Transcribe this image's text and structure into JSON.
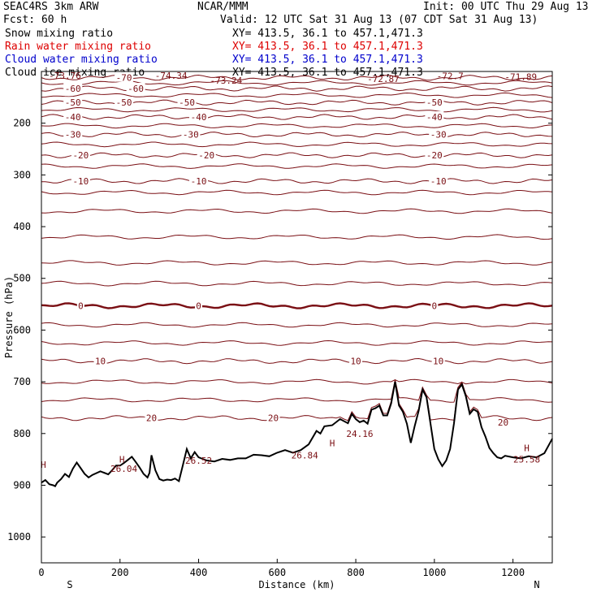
{
  "header": {
    "model": "SEAC4RS  3km ARW",
    "org": "NCAR/MMM",
    "init": "Init: 00 UTC Thu 29 Aug 13",
    "fcst": "Fcst:   60 h",
    "valid": "Valid: 12 UTC Sat 31 Aug 13 (07 CDT Sat 31 Aug 13)"
  },
  "fields": [
    {
      "name": "Snow mixing ratio",
      "xy": "XY= 413.5, 36.1 to 457.1,471.3",
      "color": "#000000"
    },
    {
      "name": "Rain water mixing ratio",
      "xy": "XY= 413.5, 36.1 to 457.1,471.3",
      "color": "#dd0000"
    },
    {
      "name": "Cloud water mixing ratio",
      "xy": "XY= 413.5, 36.1 to 457.1,471.3",
      "color": "#0000cc"
    },
    {
      "name": "Cloud ice mixing ratio",
      "xy": "XY= 413.5, 36.1 to 457.1,471.3",
      "color": "#000000"
    }
  ],
  "chart_data": {
    "type": "line",
    "xlabel": "Distance (km)",
    "ylabel": "Pressure (hPa)",
    "xlim": [
      0,
      1300
    ],
    "ylim": [
      1050,
      100
    ],
    "x_ticks": [
      0,
      200,
      400,
      600,
      800,
      1000,
      1200
    ],
    "y_ticks": [
      200,
      300,
      400,
      500,
      600,
      700,
      800,
      900,
      1000
    ],
    "x_end_labels": {
      "left": "S",
      "right": "N"
    },
    "contour_color": "#7a0f14",
    "isotherms": [
      {
        "label": "-70",
        "p": 112
      },
      {
        "label": "-60",
        "p": 133
      },
      {
        "label": "-50",
        "p": 160
      },
      {
        "label": "-40",
        "p": 188
      },
      {
        "label": "-30",
        "p": 222
      },
      {
        "label": "-20",
        "p": 262
      },
      {
        "label": "-10",
        "p": 312
      },
      {
        "label": "0",
        "p": 553
      },
      {
        "label": "10",
        "p": 660
      },
      {
        "label": "20",
        "p": 770
      }
    ],
    "isotherm_label_positions": [
      {
        "label": "-70",
        "x": 210
      },
      {
        "label": "-60",
        "x": 240
      },
      {
        "label": "-60",
        "x": 80
      },
      {
        "label": "-50",
        "x": 80
      },
      {
        "label": "-50",
        "x": 210
      },
      {
        "label": "-50",
        "x": 370
      },
      {
        "label": "-50",
        "x": 1000
      },
      {
        "label": "-40",
        "x": 80
      },
      {
        "label": "-40",
        "x": 400
      },
      {
        "label": "-40",
        "x": 1000
      },
      {
        "label": "-30",
        "x": 80
      },
      {
        "label": "-30",
        "x": 380
      },
      {
        "label": "-30",
        "x": 1010
      },
      {
        "label": "-20",
        "x": 100
      },
      {
        "label": "-20",
        "x": 420
      },
      {
        "label": "-20",
        "x": 1000
      },
      {
        "label": "-10",
        "x": 100
      },
      {
        "label": "-10",
        "x": 400
      },
      {
        "label": "-10",
        "x": 1010
      },
      {
        "label": "0",
        "x": 100
      },
      {
        "label": "0",
        "x": 400
      },
      {
        "label": "0",
        "x": 1000
      },
      {
        "label": "10",
        "x": 150
      },
      {
        "label": "10",
        "x": 800
      },
      {
        "label": "10",
        "x": 1010
      },
      {
        "label": "20",
        "x": 280
      },
      {
        "label": "20",
        "x": 590
      }
    ],
    "tropopause_values": [
      {
        "label": "-73.76",
        "x": 60,
        "p": 108
      },
      {
        "label": "-74.34",
        "x": 330,
        "p": 108
      },
      {
        "label": "-73.24",
        "x": 470,
        "p": 117
      },
      {
        "label": "-72.87",
        "x": 870,
        "p": 114
      },
      {
        "label": "-72.7",
        "x": 1040,
        "p": 109
      },
      {
        "label": "-71.89",
        "x": 1220,
        "p": 110
      }
    ],
    "surface_max_labels": [
      {
        "label": "H",
        "x": 5,
        "p": 860
      },
      {
        "label": "H",
        "x": 205,
        "p": 850
      },
      {
        "label": "H",
        "x": 740,
        "p": 818
      },
      {
        "label": "H",
        "x": 1235,
        "p": 828
      }
    ],
    "surface_values": [
      {
        "label": "24.16",
        "x": 810,
        "p": 800
      },
      {
        "label": "26.04",
        "x": 210,
        "p": 868
      },
      {
        "label": "26.52",
        "x": 400,
        "p": 852
      },
      {
        "label": "26.84",
        "x": 670,
        "p": 842
      },
      {
        "label": "25.58",
        "x": 1235,
        "p": 850
      },
      {
        "label": "20",
        "x": 1175,
        "p": 778
      }
    ],
    "terrain_distance_km": [
      0,
      10,
      20,
      30,
      35,
      40,
      50,
      60,
      70,
      80,
      90,
      100,
      110,
      120,
      130,
      150,
      170,
      180,
      190,
      200,
      210,
      220,
      230,
      240,
      250,
      260,
      270,
      275,
      280,
      290,
      300,
      310,
      320,
      330,
      340,
      350,
      360,
      370,
      380,
      390,
      400,
      410,
      420,
      440,
      460,
      480,
      500,
      520,
      540,
      560,
      580,
      600,
      620,
      640,
      660,
      680,
      700,
      710,
      720,
      740,
      760,
      780,
      790,
      800,
      810,
      820,
      830,
      840,
      850,
      860,
      870,
      880,
      890,
      900,
      910,
      920,
      930,
      940,
      950,
      960,
      970,
      980,
      990,
      1000,
      1010,
      1020,
      1030,
      1040,
      1050,
      1060,
      1070,
      1080,
      1090,
      1100,
      1110,
      1120,
      1130,
      1140,
      1150,
      1160,
      1170,
      1180,
      1200,
      1220,
      1240,
      1260,
      1280,
      1300
    ],
    "terrain_pressure_hpa": [
      895,
      890,
      898,
      900,
      902,
      895,
      888,
      878,
      884,
      868,
      856,
      867,
      878,
      885,
      880,
      873,
      879,
      871,
      862,
      862,
      857,
      851,
      845,
      855,
      866,
      878,
      885,
      876,
      842,
      871,
      888,
      891,
      889,
      890,
      887,
      892,
      861,
      830,
      848,
      836,
      846,
      849,
      852,
      854,
      849,
      851,
      848,
      848,
      841,
      842,
      844,
      837,
      832,
      837,
      832,
      821,
      795,
      800,
      786,
      784,
      772,
      780,
      762,
      772,
      778,
      775,
      781,
      754,
      751,
      746,
      765,
      765,
      742,
      700,
      746,
      758,
      781,
      818,
      785,
      756,
      715,
      730,
      780,
      830,
      850,
      863,
      852,
      830,
      780,
      715,
      705,
      728,
      762,
      753,
      758,
      788,
      806,
      828,
      838,
      846,
      848,
      843,
      846,
      848,
      844,
      846,
      838,
      810
    ]
  }
}
